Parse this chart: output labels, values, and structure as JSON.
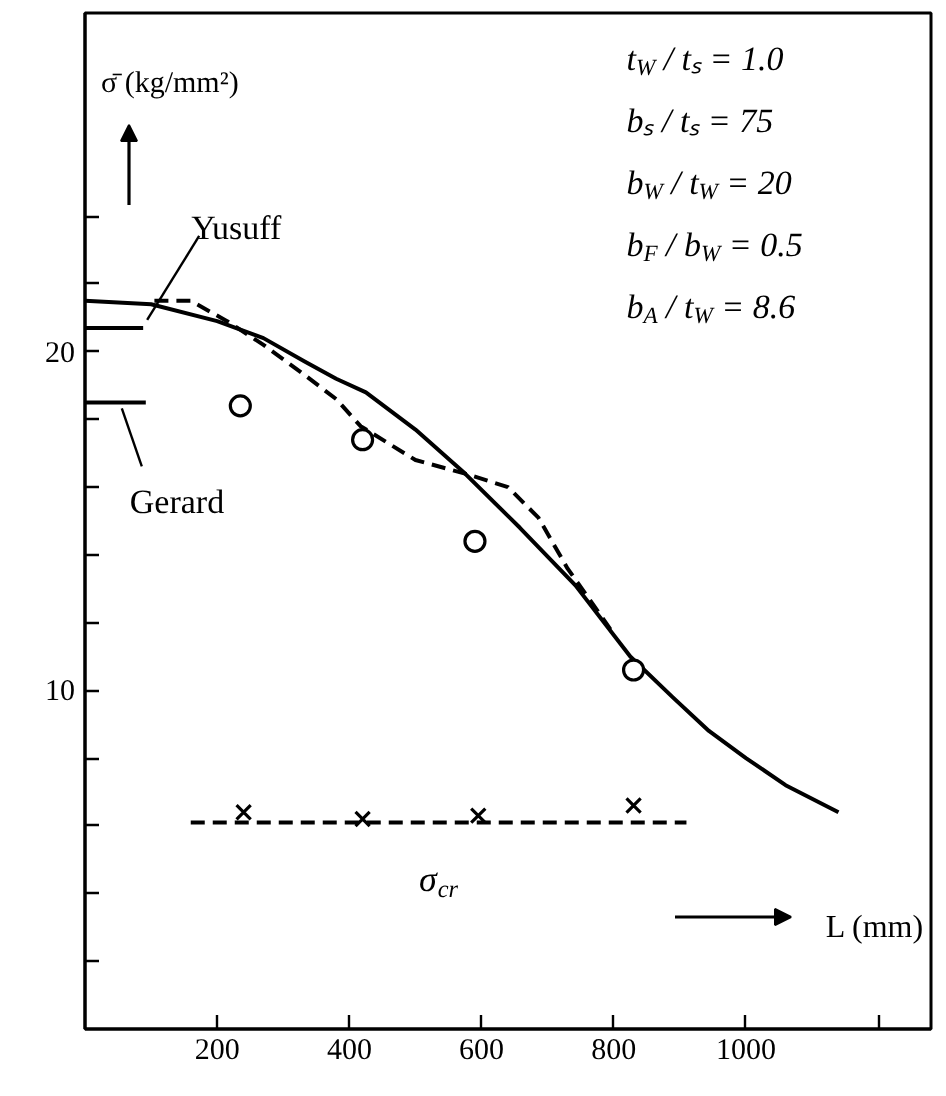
{
  "chart_data": {
    "type": "line",
    "xlabel": "L (mm)",
    "ylabel": "σ̄ (kg/mm²)",
    "xlim": [
      0,
      1280
    ],
    "ylim": [
      0,
      30
    ],
    "xticks": [
      200,
      400,
      600,
      800,
      1000,
      {
        "value": 1200,
        "label": null
      }
    ],
    "yticks": [
      {
        "value": 2,
        "label": null
      },
      {
        "value": 4,
        "label": null
      },
      {
        "value": 6,
        "label": null
      },
      {
        "value": 8,
        "label": null
      },
      10,
      {
        "value": 12,
        "label": null
      },
      {
        "value": 14,
        "label": null
      },
      {
        "value": 16,
        "label": null
      },
      {
        "value": 18,
        "label": null
      },
      20,
      {
        "value": 22,
        "label": null
      },
      {
        "value": 24,
        "label": null
      }
    ],
    "grid": false,
    "annotations": [
      "t$_{W}$ / tₛ = 1.0",
      "bₛ / tₛ = 75",
      "b$_{W}$ / t$_{W}$ = 20",
      "b$_{F}$ / b$_{W}$ = 0.5",
      "b$_{A}$ / t$_{W}$ = 8.6"
    ],
    "series": [
      {
        "color": "#000000",
        "line_style": "solid",
        "x": [
          0,
          100,
          200,
          270,
          333,
          380,
          425,
          500,
          575,
          658,
          742,
          825,
          889,
          944,
          1000,
          1060,
          1140
        ],
        "values": [
          21.5,
          21.4,
          20.9,
          20.4,
          19.7,
          19.2,
          18.8,
          17.7,
          16.4,
          14.8,
          13.1,
          11.0,
          9.8,
          8.8,
          8.0,
          7.2,
          6.4
        ]
      },
      {
        "color": "#000000",
        "line_style": "dashed",
        "x": [
          105,
          160,
          215,
          270,
          333,
          380,
          417,
          500,
          575,
          640,
          686,
          730,
          770,
          795
        ],
        "values": [
          21.5,
          21.5,
          20.9,
          20.2,
          19.3,
          18.6,
          17.8,
          16.8,
          16.4,
          16.0,
          15.1,
          13.6,
          12.5,
          11.8
        ]
      },
      {
        "type": "scatter",
        "marker": "circle",
        "color": "#000000",
        "x": [
          235,
          420,
          590,
          830
        ],
        "values": [
          18.4,
          17.4,
          14.4,
          10.6
        ]
      },
      {
        "type": "scatter",
        "marker": "cross",
        "color": "#000000",
        "x": [
          240,
          420,
          595,
          830
        ],
        "values": [
          6.4,
          6.2,
          6.3,
          6.6
        ]
      },
      {
        "name": "σ$_{cr}$",
        "color": "#000000",
        "line_style": "dashed",
        "x": [
          160,
          910
        ],
        "values": [
          6.1,
          6.1
        ]
      },
      {
        "name": "Yusuff",
        "color": "#000000",
        "line_style": "solid",
        "x": [
          0,
          88
        ],
        "values": [
          20.7,
          20.7
        ]
      },
      {
        "name": "Gerard",
        "color": "#000000",
        "line_style": "solid",
        "x": [
          0,
          92
        ],
        "values": [
          18.5,
          18.5
        ]
      }
    ]
  }
}
